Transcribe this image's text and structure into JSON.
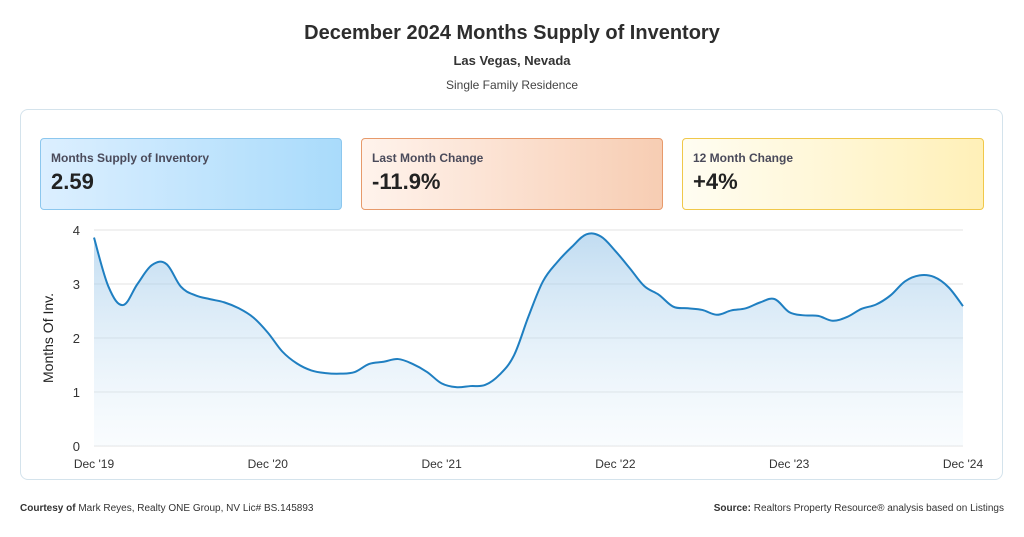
{
  "header": {
    "title": "December 2024 Months Supply of Inventory",
    "location": "Las Vegas, Nevada",
    "property_type": "Single Family Residence"
  },
  "cards": [
    {
      "label": "Months Supply of Inventory",
      "value": "2.59",
      "color": "#a9dbfb"
    },
    {
      "label": "Last Month Change",
      "value": "-11.9%",
      "color": "#f7cdb3"
    },
    {
      "label": "12 Month Change",
      "value": "+4%",
      "color": "#fff0b8"
    }
  ],
  "chart_data": {
    "type": "area",
    "ylabel": "Months Of Inv.",
    "xlabel": "",
    "ylim": [
      0,
      4
    ],
    "yticks": [
      "0",
      "1",
      "2",
      "3",
      "4"
    ],
    "xtick_labels": [
      "Dec '19",
      "Dec '20",
      "Dec '21",
      "Dec '22",
      "Dec '23",
      "Dec '24"
    ],
    "xtick_indices": [
      0,
      12,
      24,
      36,
      48,
      60
    ],
    "grid": true,
    "line_color": "#1f7fc1",
    "series": [
      {
        "values": [
          3.86,
          2.95,
          2.61,
          3.0,
          3.35,
          3.37,
          2.95,
          2.79,
          2.72,
          2.66,
          2.55,
          2.38,
          2.1,
          1.75,
          1.53,
          1.4,
          1.35,
          1.34,
          1.37,
          1.52,
          1.56,
          1.61,
          1.52,
          1.37,
          1.16,
          1.09,
          1.11,
          1.13,
          1.32,
          1.68,
          2.4,
          3.05,
          3.41,
          3.69,
          3.92,
          3.88,
          3.61,
          3.29,
          2.96,
          2.8,
          2.58,
          2.55,
          2.52,
          2.43,
          2.51,
          2.55,
          2.66,
          2.72,
          2.48,
          2.42,
          2.41,
          2.32,
          2.39,
          2.54,
          2.62,
          2.79,
          3.05,
          3.16,
          3.13,
          2.94,
          2.59
        ]
      }
    ]
  },
  "footer": {
    "courtesy_label": "Courtesy of",
    "courtesy_text": "Mark Reyes, Realty ONE Group, NV Lic# BS.145893",
    "source_label": "Source:",
    "source_text": "Realtors Property Resource® analysis based on Listings"
  }
}
